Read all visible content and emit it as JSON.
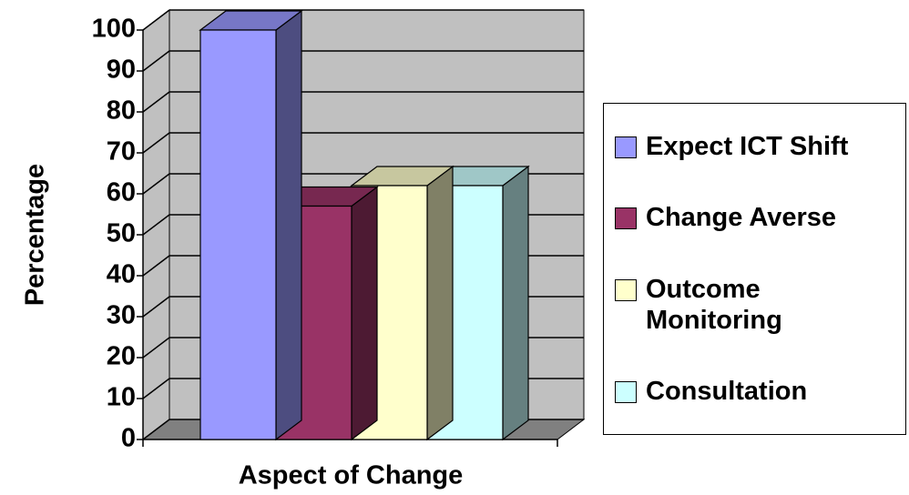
{
  "chart_data": {
    "type": "bar3d",
    "y_label": "Percentage",
    "x_label": "Aspect of Change",
    "categories": [
      null
    ],
    "series": [
      {
        "name": "Expect ICT Shift",
        "color": "#9999ff",
        "values": [
          100
        ]
      },
      {
        "name": "Change Averse",
        "color": "#993366",
        "values": [
          57
        ]
      },
      {
        "name": "Outcome Monitoring",
        "color": "#ffffcc",
        "values": [
          62
        ]
      },
      {
        "name": "Consultation",
        "color": "#ccffff",
        "values": [
          62
        ]
      }
    ],
    "ylim": [
      0,
      100
    ],
    "yticks": [
      0,
      10,
      20,
      30,
      40,
      50,
      60,
      70,
      80,
      90,
      100
    ],
    "grid": true,
    "legend": "right"
  }
}
